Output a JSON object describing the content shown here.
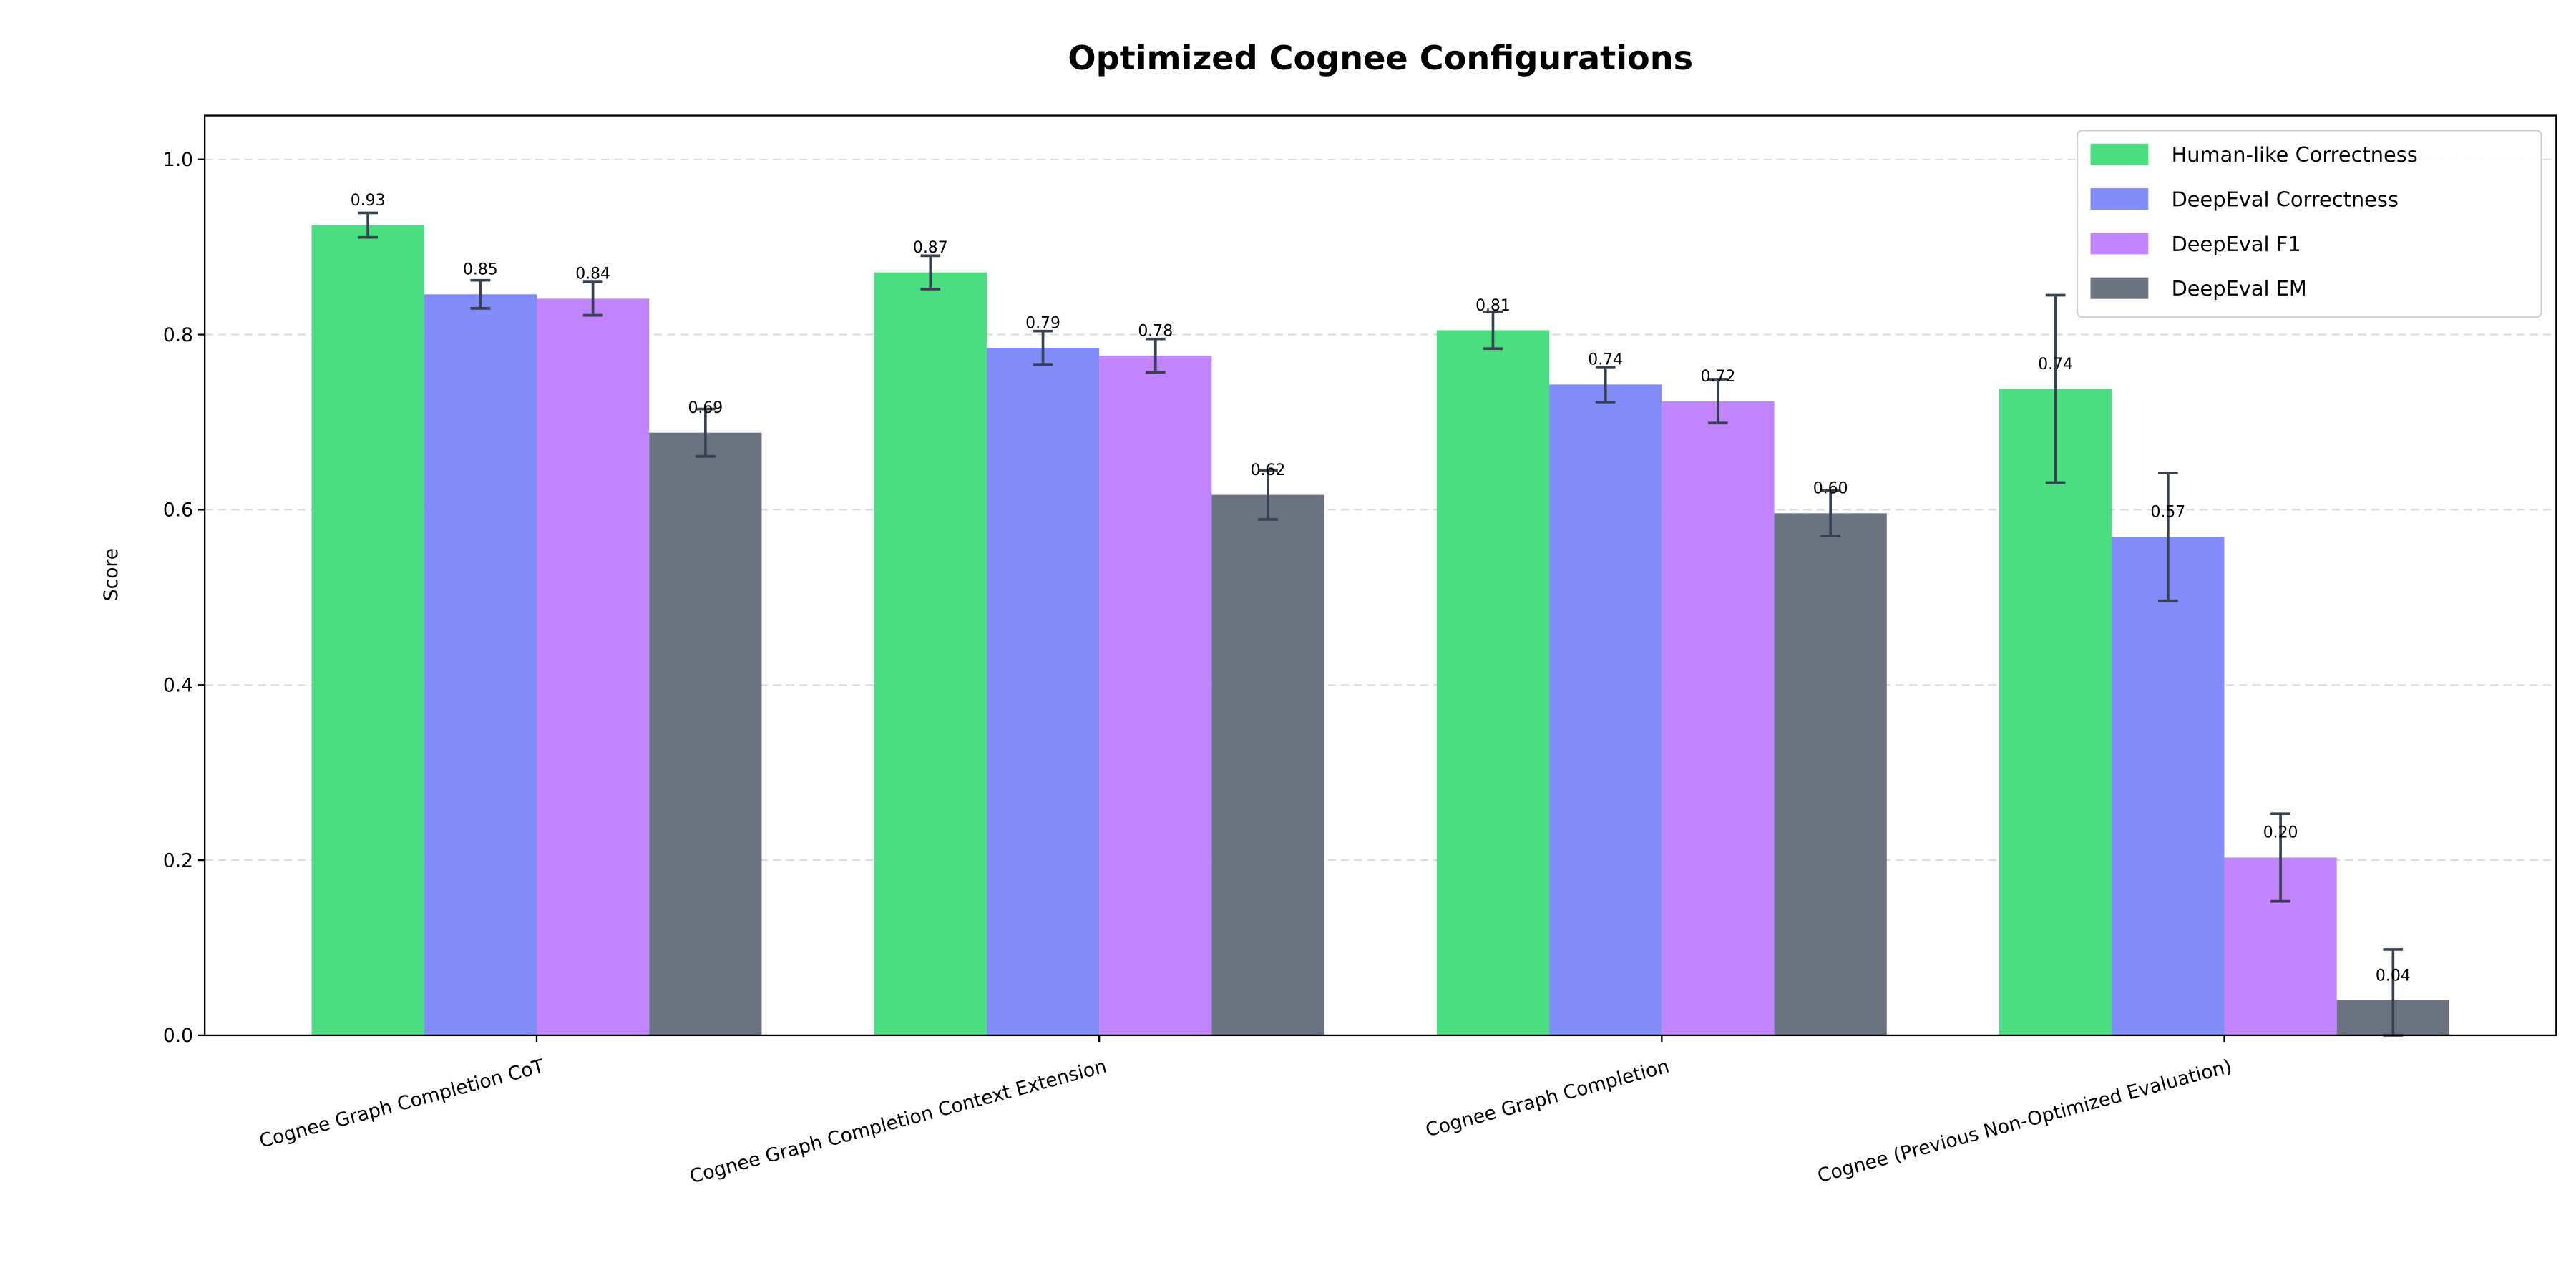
{
  "chart_data": {
    "type": "bar",
    "title": "Optimized Cognee Configurations",
    "xlabel": "",
    "ylabel": "Score",
    "ylim": [
      0,
      1.05
    ],
    "yticks": [
      "0.0",
      "0.2",
      "0.4",
      "0.6",
      "0.8",
      "1.0"
    ],
    "grid": "y, dashed",
    "legend_position": "top-right",
    "categories": [
      "Cognee Graph Completion CoT",
      "Cognee Graph Completion Context Extension",
      "Cognee Graph Completion",
      "Cognee (Previous Non-Optimized Evaluation)"
    ],
    "series": [
      {
        "name": "Human-like Correctness",
        "color": "#4ade80",
        "values": [
          0.925,
          0.871,
          0.805,
          0.738
        ],
        "errors": [
          0.014,
          0.019,
          0.021,
          0.107
        ],
        "labels": [
          "0.93",
          "0.87",
          "0.81",
          "0.74"
        ]
      },
      {
        "name": "DeepEval Correctness",
        "color": "#818cf8",
        "values": [
          0.846,
          0.785,
          0.743,
          0.569
        ],
        "errors": [
          0.016,
          0.019,
          0.02,
          0.073
        ],
        "labels": [
          "0.85",
          "0.79",
          "0.74",
          "0.57"
        ]
      },
      {
        "name": "DeepEval F1",
        "color": "#c084fc",
        "values": [
          0.841,
          0.776,
          0.724,
          0.203
        ],
        "errors": [
          0.019,
          0.019,
          0.025,
          0.05
        ],
        "labels": [
          "0.84",
          "0.78",
          "0.72",
          "0.20"
        ]
      },
      {
        "name": "DeepEval EM",
        "color": "#6b7280",
        "values": [
          0.688,
          0.617,
          0.596,
          0.04
        ],
        "errors": [
          0.027,
          0.028,
          0.026,
          0.058
        ],
        "labels": [
          "0.69",
          "0.62",
          "0.60",
          "0.04"
        ]
      }
    ],
    "error_bar_color": "#374151"
  }
}
